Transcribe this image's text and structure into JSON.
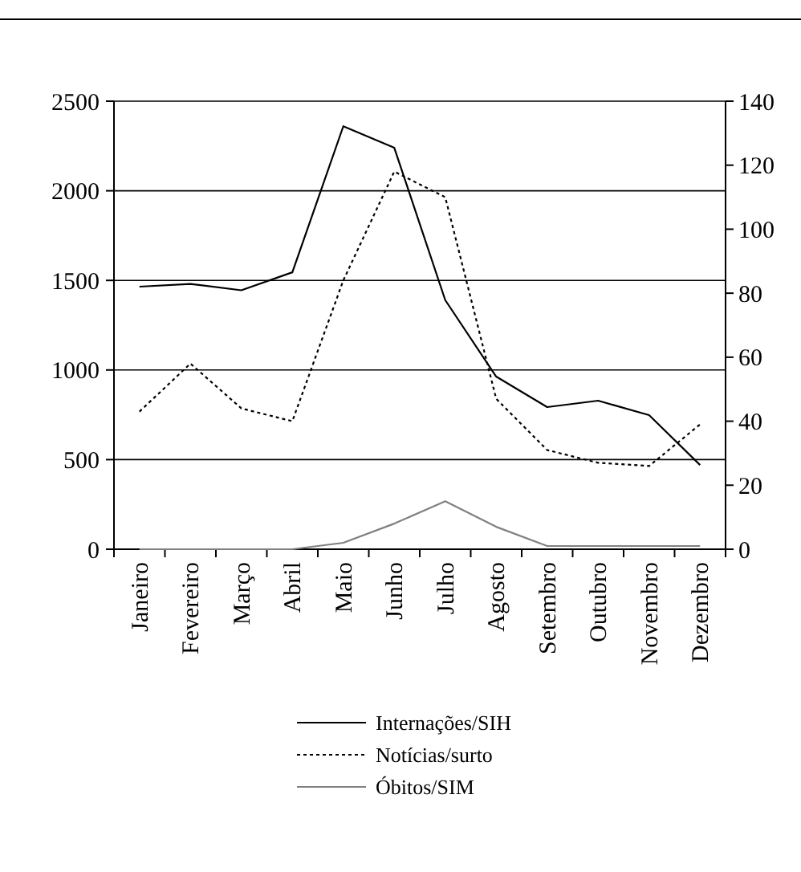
{
  "chart_data": {
    "type": "line",
    "categories": [
      "Janeiro",
      "Fevereiro",
      "Março",
      "Abril",
      "Maio",
      "Junho",
      "Julho",
      "Agosto",
      "Setembro",
      "Outubro",
      "Novembro",
      "Dezembro"
    ],
    "series": [
      {
        "name": "Internações/SIH",
        "color": "#000000",
        "line_style": "solid",
        "values": [
          1465,
          1480,
          1445,
          1545,
          2360,
          2240,
          1390,
          963,
          793,
          829,
          748,
          470
        ]
      },
      {
        "name": "Notícias/surto",
        "color": "#000000",
        "line_style": "dotted",
        "axis": "y2",
        "values": [
          43,
          58,
          44,
          40,
          84,
          118,
          110,
          47,
          31,
          27,
          26,
          39
        ]
      },
      {
        "name": "Óbitos/SIM",
        "color": "#808080",
        "line_style": "solid",
        "axis": "y2",
        "values": [
          0,
          0,
          0,
          0,
          2,
          8,
          15,
          7,
          1,
          1,
          1,
          1
        ]
      }
    ],
    "ylim": [
      0,
      2500
    ],
    "yticks": [
      0,
      500,
      1000,
      1500,
      2000,
      2500
    ],
    "y2lim": [
      0,
      140
    ],
    "y2ticks": [
      0,
      20,
      40,
      60,
      80,
      100,
      120,
      140
    ],
    "grid": "y",
    "legend": "bottom",
    "marker": "none"
  }
}
